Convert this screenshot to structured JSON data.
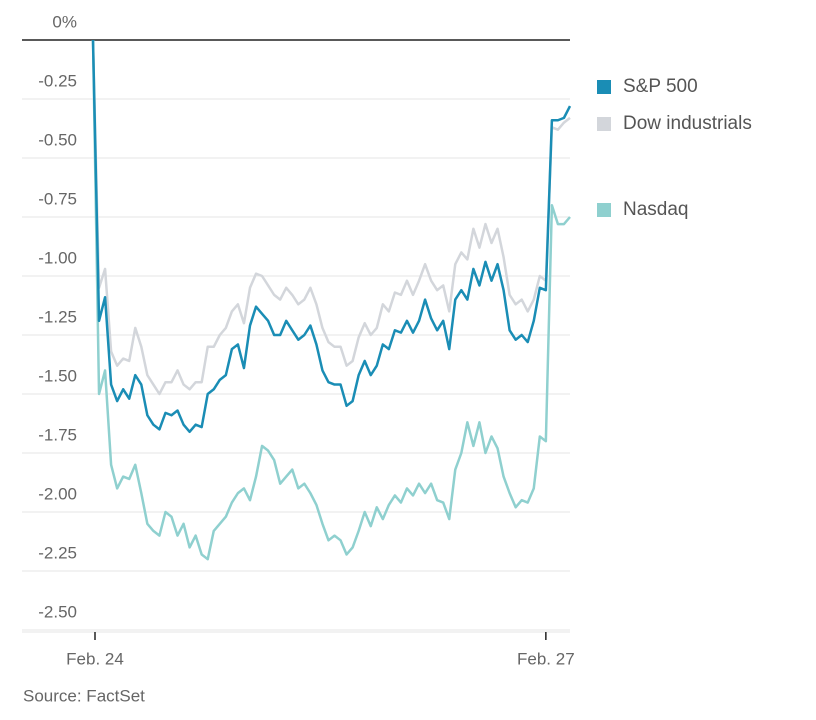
{
  "chart_data": {
    "type": "line",
    "categories": [
      "Feb. 24",
      null,
      null,
      null,
      null,
      null,
      null,
      null,
      null,
      null,
      null,
      null,
      null,
      null,
      null,
      null,
      null,
      null,
      null,
      null,
      null,
      null,
      null,
      null,
      null,
      null,
      null,
      null,
      null,
      null,
      null,
      null,
      null,
      null,
      null,
      null,
      null,
      null,
      null,
      null,
      null,
      null,
      null,
      null,
      null,
      null,
      null,
      null,
      null,
      null,
      null,
      null,
      null,
      null,
      null,
      null,
      null,
      null,
      null,
      null,
      null,
      null,
      null,
      null,
      null,
      null,
      null,
      null,
      null,
      null,
      null,
      null,
      null,
      null,
      null,
      "Feb. 27",
      null,
      null,
      null,
      null
    ],
    "series": [
      {
        "name": "Dow industrials",
        "color": "#d3d6db",
        "values": [
          0,
          -1.05,
          -0.97,
          -1.32,
          -1.38,
          -1.35,
          -1.36,
          -1.22,
          -1.3,
          -1.42,
          -1.46,
          -1.5,
          -1.45,
          -1.45,
          -1.4,
          -1.46,
          -1.48,
          -1.45,
          -1.45,
          -1.3,
          -1.3,
          -1.25,
          -1.22,
          -1.15,
          -1.12,
          -1.2,
          -1.05,
          -0.99,
          -1.0,
          -1.04,
          -1.08,
          -1.1,
          -1.05,
          -1.08,
          -1.12,
          -1.1,
          -1.05,
          -1.12,
          -1.22,
          -1.28,
          -1.3,
          -1.3,
          -1.38,
          -1.36,
          -1.26,
          -1.2,
          -1.25,
          -1.22,
          -1.12,
          -1.15,
          -1.07,
          -1.08,
          -1.02,
          -1.08,
          -1.02,
          -0.95,
          -1.02,
          -1.06,
          -1.04,
          -1.15,
          -0.95,
          -0.9,
          -0.93,
          -0.8,
          -0.88,
          -0.78,
          -0.86,
          -0.8,
          -0.92,
          -1.08,
          -1.12,
          -1.1,
          -1.15,
          -1.1,
          -1.0,
          -1.02,
          -0.37,
          -0.38,
          -0.35,
          -0.33
        ]
      },
      {
        "name": "Nasdaq",
        "color": "#8fd0cf",
        "values": [
          0,
          -1.5,
          -1.4,
          -1.8,
          -1.9,
          -1.85,
          -1.86,
          -1.8,
          -1.92,
          -2.05,
          -2.08,
          -2.1,
          -2.0,
          -2.02,
          -2.1,
          -2.05,
          -2.15,
          -2.1,
          -2.18,
          -2.2,
          -2.08,
          -2.05,
          -2.02,
          -1.96,
          -1.92,
          -1.9,
          -1.95,
          -1.85,
          -1.72,
          -1.74,
          -1.78,
          -1.88,
          -1.85,
          -1.82,
          -1.9,
          -1.88,
          -1.92,
          -1.97,
          -2.05,
          -2.12,
          -2.1,
          -2.12,
          -2.18,
          -2.15,
          -2.08,
          -2.0,
          -2.06,
          -1.98,
          -2.03,
          -1.97,
          -1.93,
          -1.96,
          -1.9,
          -1.93,
          -1.88,
          -1.92,
          -1.88,
          -1.95,
          -1.96,
          -2.03,
          -1.82,
          -1.75,
          -1.62,
          -1.72,
          -1.62,
          -1.75,
          -1.68,
          -1.73,
          -1.85,
          -1.92,
          -1.98,
          -1.95,
          -1.96,
          -1.9,
          -1.68,
          -1.7,
          -0.7,
          -0.78,
          -0.78,
          -0.75
        ]
      },
      {
        "name": "S&P 500",
        "color": "#1a8db5",
        "values": [
          0,
          -1.19,
          -1.09,
          -1.46,
          -1.53,
          -1.48,
          -1.52,
          -1.42,
          -1.46,
          -1.59,
          -1.63,
          -1.65,
          -1.58,
          -1.59,
          -1.57,
          -1.63,
          -1.66,
          -1.63,
          -1.64,
          -1.5,
          -1.48,
          -1.44,
          -1.42,
          -1.31,
          -1.29,
          -1.39,
          -1.21,
          -1.13,
          -1.16,
          -1.19,
          -1.25,
          -1.25,
          -1.19,
          -1.23,
          -1.27,
          -1.25,
          -1.21,
          -1.29,
          -1.4,
          -1.45,
          -1.46,
          -1.46,
          -1.55,
          -1.53,
          -1.42,
          -1.36,
          -1.42,
          -1.38,
          -1.29,
          -1.31,
          -1.23,
          -1.24,
          -1.19,
          -1.24,
          -1.19,
          -1.1,
          -1.18,
          -1.23,
          -1.19,
          -1.31,
          -1.1,
          -1.06,
          -1.1,
          -0.97,
          -1.04,
          -0.94,
          -1.02,
          -0.95,
          -1.06,
          -1.23,
          -1.27,
          -1.25,
          -1.28,
          -1.19,
          -1.05,
          -1.06,
          -0.34,
          -0.34,
          -0.33,
          -0.28
        ]
      }
    ],
    "legend_order": [
      "S&P 500",
      "Dow industrials",
      "Nasdaq"
    ],
    "ylim": [
      -2.5,
      0
    ],
    "yticks": [
      {
        "value": 0,
        "label": "0%"
      },
      -0.25,
      {
        "value": -0.5,
        "label": "-0.50"
      },
      -0.75,
      {
        "value": -1,
        "label": "-1.00"
      },
      -1.25,
      {
        "value": -1.5,
        "label": "-1.50"
      },
      -1.75,
      {
        "value": -2,
        "label": "-2.00"
      },
      -2.25,
      {
        "value": -2.5,
        "label": "-2.50"
      }
    ],
    "grid": true,
    "source": "Source: FactSet"
  }
}
